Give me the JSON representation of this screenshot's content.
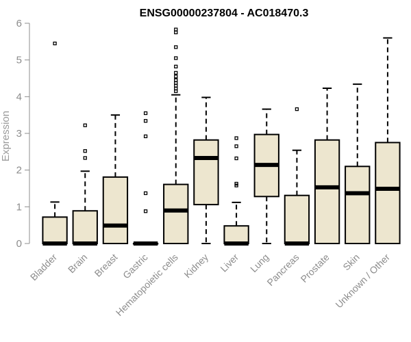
{
  "chart_data": {
    "type": "boxplot",
    "title": "ENSG00000237804 - AC018470.3",
    "xlabel": "",
    "ylabel": "Expression",
    "ylim": [
      0,
      6
    ],
    "yticks": [
      "0",
      "1",
      "2",
      "3",
      "4",
      "5",
      "6"
    ],
    "grid": false,
    "legend": "none",
    "box_fill": "#ede6cf",
    "median_color": "#000000",
    "categories": [
      "Bladder",
      "Brain",
      "Breast",
      "Gastric",
      "Hematopoietic cells",
      "Kidney",
      "Liver",
      "Lung",
      "Pancreas",
      "Prostate",
      "Skin",
      "Unknown / Other"
    ],
    "boxes": [
      {
        "min": 0,
        "q1": 0,
        "median": 0,
        "q3": 0.72,
        "max": 1.13,
        "outliers": [
          5.45
        ]
      },
      {
        "min": 0,
        "q1": 0,
        "median": 0,
        "q3": 0.89,
        "max": 1.97,
        "outliers": [
          2.33,
          2.52,
          3.22
        ]
      },
      {
        "min": 0,
        "q1": 0,
        "median": 0.49,
        "q3": 1.81,
        "max": 3.5,
        "outliers": []
      },
      {
        "min": 0,
        "q1": 0,
        "median": 0,
        "q3": 0,
        "max": 0,
        "outliers": [
          0.88,
          1.37,
          2.92,
          3.34,
          3.55
        ]
      },
      {
        "min": 0,
        "q1": 0,
        "median": 0.9,
        "q3": 1.61,
        "max": 4.05,
        "outliers": [
          4.15,
          4.22,
          4.3,
          4.37,
          4.45,
          4.55,
          4.65,
          4.82,
          5.05,
          5.35,
          5.75,
          5.83
        ]
      },
      {
        "min": 0,
        "q1": 1.06,
        "median": 2.33,
        "q3": 2.82,
        "max": 3.98,
        "outliers": []
      },
      {
        "min": 0,
        "q1": 0,
        "median": 0,
        "q3": 0.48,
        "max": 1.12,
        "outliers": [
          1.58,
          1.63,
          2.32,
          2.65,
          2.87
        ]
      },
      {
        "min": 0,
        "q1": 1.28,
        "median": 2.14,
        "q3": 2.97,
        "max": 3.66,
        "outliers": []
      },
      {
        "min": 0,
        "q1": 0,
        "median": 0,
        "q3": 1.31,
        "max": 2.54,
        "outliers": [
          3.66
        ]
      },
      {
        "min": 0,
        "q1": 0,
        "median": 1.53,
        "q3": 2.82,
        "max": 4.23,
        "outliers": []
      },
      {
        "min": 0,
        "q1": 0,
        "median": 1.37,
        "q3": 2.1,
        "max": 4.34,
        "outliers": []
      },
      {
        "min": 0,
        "q1": 0,
        "median": 1.49,
        "q3": 2.75,
        "max": 5.6,
        "outliers": []
      }
    ]
  }
}
